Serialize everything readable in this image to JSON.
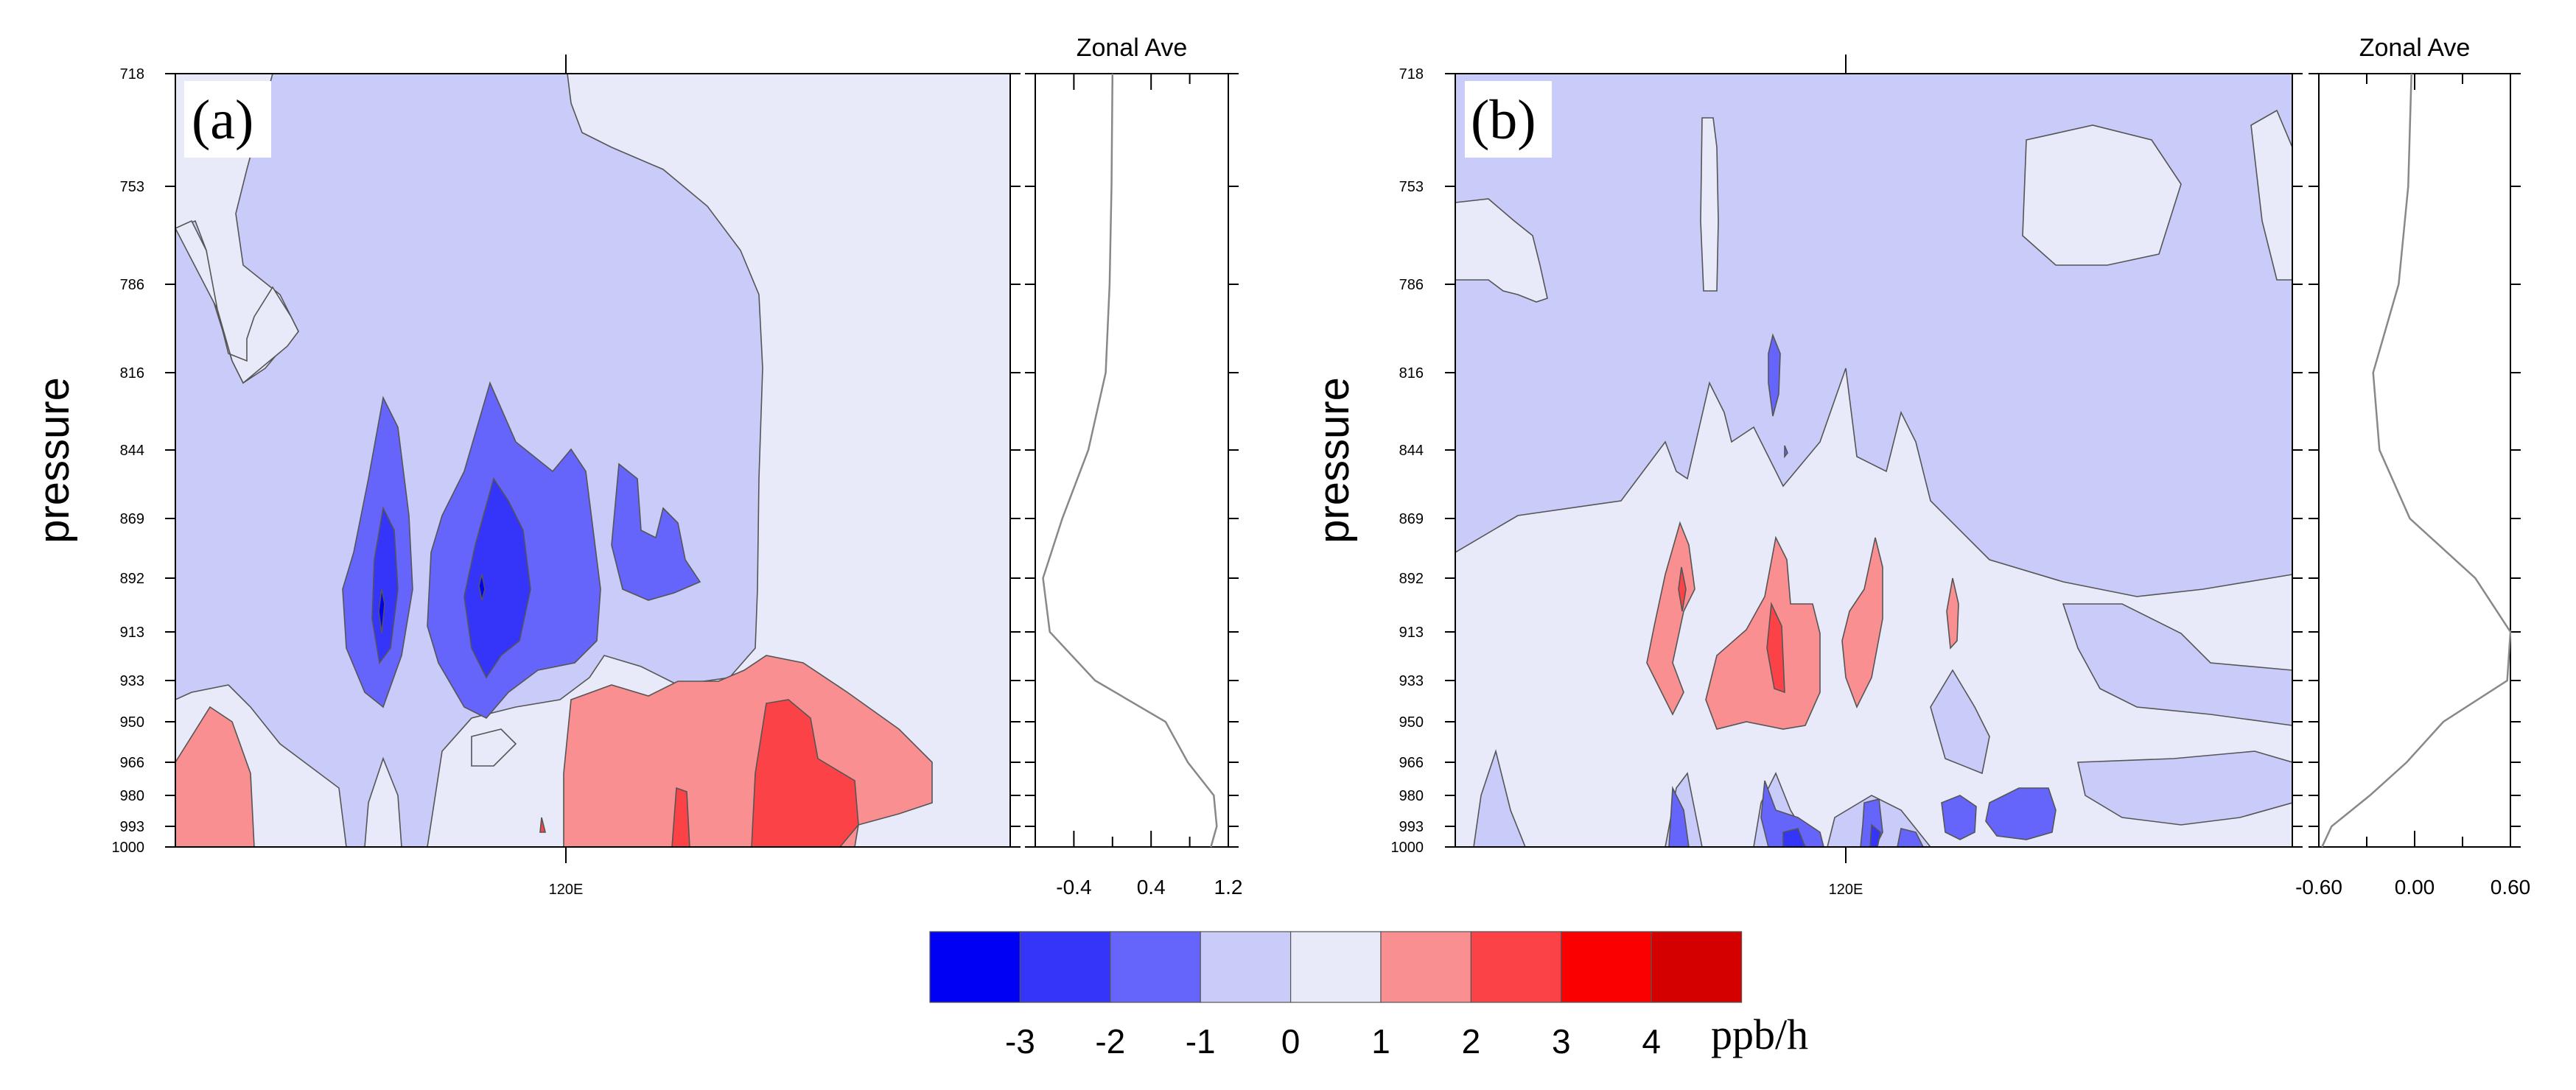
{
  "chart_data": [
    {
      "type": "contour",
      "panel_label": "(a)",
      "ylabel": "pressure",
      "y_ticks": [
        "718",
        "753",
        "786",
        "816",
        "844",
        "869",
        "892",
        "913",
        "933",
        "950",
        "966",
        "980",
        "993",
        "1000"
      ],
      "x_tick_label": "120E",
      "fill_levels": [
        {
          "range": "< -3",
          "color": "#0000f5"
        },
        {
          "range": "-3 to -2",
          "color": "#3535fa"
        },
        {
          "range": "-2 to -1",
          "color": "#6565fb"
        },
        {
          "range": "-1 to 0",
          "color": "#c9cbf9"
        },
        {
          "range": "0 to 1",
          "color": "#e9eaf9"
        },
        {
          "range": "1 to 2",
          "color": "#fa8f92"
        },
        {
          "range": "2 to 3",
          "color": "#fb4347"
        }
      ],
      "side_panel": {
        "title": "Zonal Ave",
        "x_tick_labels": [
          "-0.4",
          "0.4",
          "1.2"
        ],
        "xlim": [
          -0.8,
          1.2
        ],
        "profile": [
          {
            "p": 718,
            "v": 0.0
          },
          {
            "p": 753,
            "v": -0.01
          },
          {
            "p": 786,
            "v": -0.03
          },
          {
            "p": 816,
            "v": -0.07
          },
          {
            "p": 844,
            "v": -0.25
          },
          {
            "p": 869,
            "v": -0.52
          },
          {
            "p": 892,
            "v": -0.72
          },
          {
            "p": 913,
            "v": -0.65
          },
          {
            "p": 933,
            "v": -0.18
          },
          {
            "p": 950,
            "v": 0.55
          },
          {
            "p": 966,
            "v": 0.78
          },
          {
            "p": 980,
            "v": 1.05
          },
          {
            "p": 993,
            "v": 1.08
          },
          {
            "p": 1000,
            "v": 1.02
          }
        ]
      }
    },
    {
      "type": "contour",
      "panel_label": "(b)",
      "ylabel": "pressure",
      "y_ticks": [
        "718",
        "753",
        "786",
        "816",
        "844",
        "869",
        "892",
        "913",
        "933",
        "950",
        "966",
        "980",
        "993",
        "1000"
      ],
      "x_tick_label": "120E",
      "fill_levels": [
        {
          "range": "-3 to -2",
          "color": "#3535fa"
        },
        {
          "range": "-2 to -1",
          "color": "#6565fb"
        },
        {
          "range": "-1 to 0",
          "color": "#c9cbf9"
        },
        {
          "range": "0 to 1",
          "color": "#e9eaf9"
        },
        {
          "range": "1 to 2",
          "color": "#fa8f92"
        },
        {
          "range": "2 to 3",
          "color": "#fb4347"
        }
      ],
      "side_panel": {
        "title": "Zonal Ave",
        "x_tick_labels": [
          "-0.60",
          "0.00",
          "0.60"
        ],
        "xlim": [
          -0.6,
          0.6
        ],
        "profile": [
          {
            "p": 718,
            "v": -0.02
          },
          {
            "p": 753,
            "v": -0.04
          },
          {
            "p": 786,
            "v": -0.1
          },
          {
            "p": 816,
            "v": -0.26
          },
          {
            "p": 844,
            "v": -0.22
          },
          {
            "p": 869,
            "v": -0.03
          },
          {
            "p": 892,
            "v": 0.38
          },
          {
            "p": 913,
            "v": 0.6
          },
          {
            "p": 933,
            "v": 0.58
          },
          {
            "p": 950,
            "v": 0.18
          },
          {
            "p": 966,
            "v": -0.05
          },
          {
            "p": 980,
            "v": -0.28
          },
          {
            "p": 993,
            "v": -0.52
          },
          {
            "p": 1000,
            "v": -0.58
          }
        ]
      }
    }
  ],
  "colorbar": {
    "colors": [
      "#0000f5",
      "#3535fa",
      "#6565fb",
      "#c9cbf9",
      "#e9eaf9",
      "#fa8f92",
      "#fb4347",
      "#fb0000",
      "#d40000"
    ],
    "tick_labels": [
      "-3",
      "-2",
      "-1",
      "0",
      "1",
      "2",
      "3",
      "4"
    ],
    "unit": "ppb/h"
  }
}
